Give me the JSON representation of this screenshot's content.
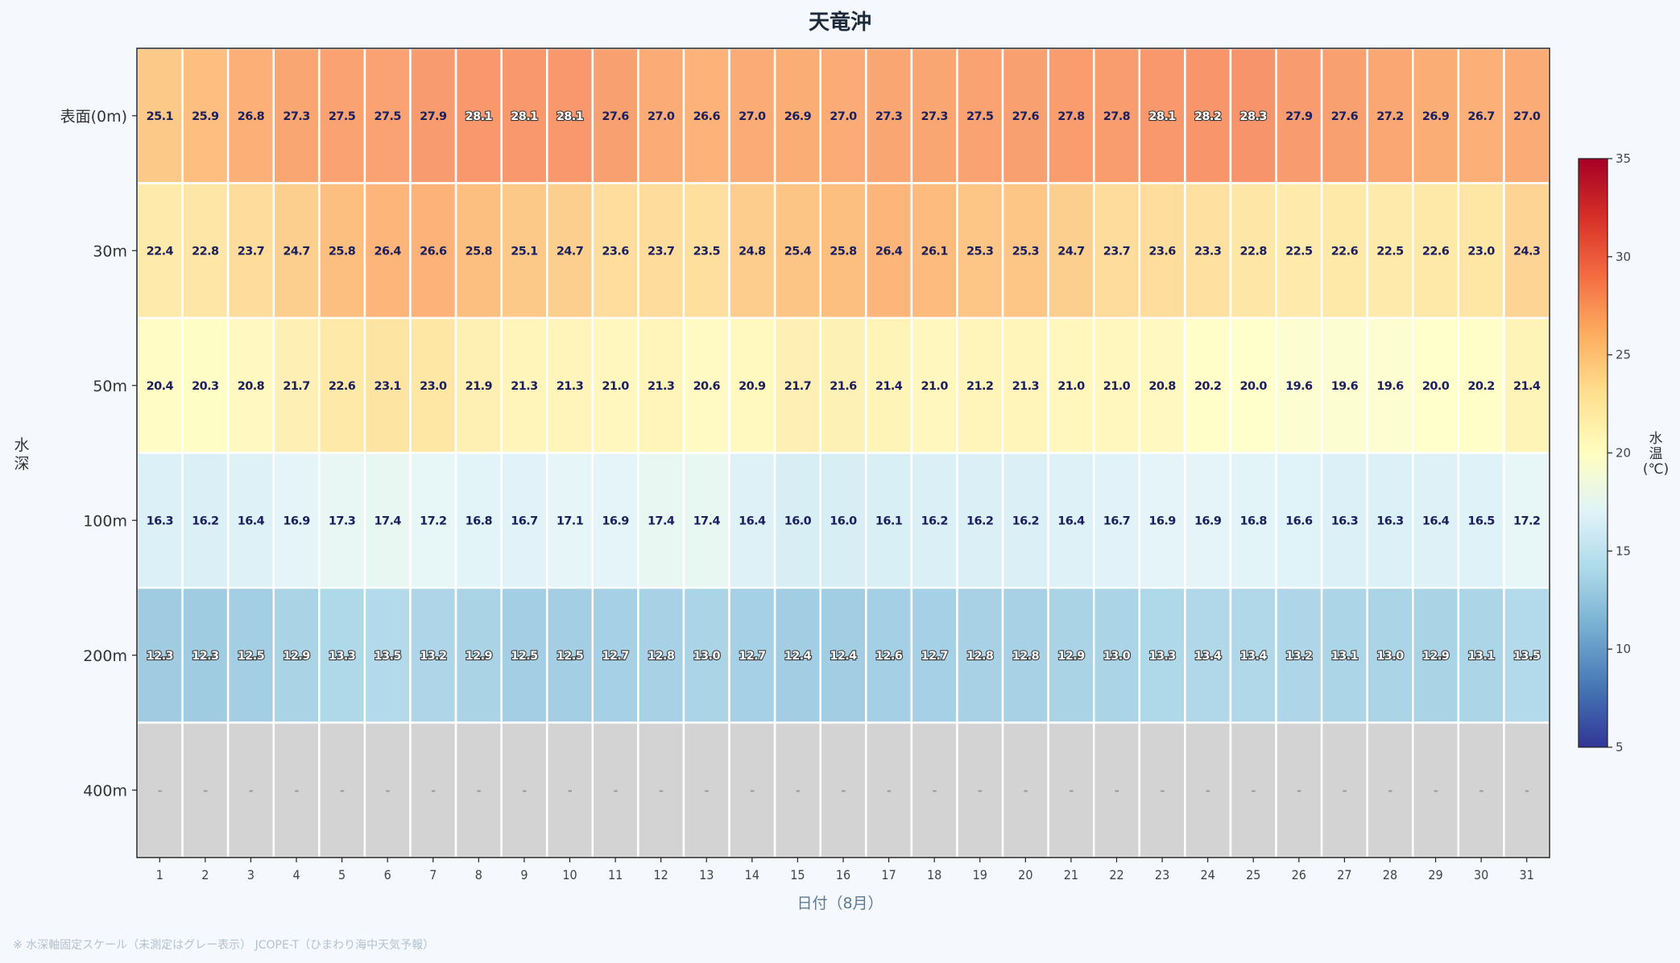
{
  "chart_data": {
    "type": "heatmap",
    "title": "天竜沖",
    "xlabel": "日付（8月）",
    "ylabel": "水深",
    "colorbar_label": "水温(℃)",
    "colorbar_range": [
      5,
      35
    ],
    "colorbar_ticks": [
      5,
      10,
      15,
      20,
      25,
      30,
      35
    ],
    "colormap": "RdYlBu_r",
    "missing_color": "#d3d3d3",
    "missing_label": "-",
    "x": [
      1,
      2,
      3,
      4,
      5,
      6,
      7,
      8,
      9,
      10,
      11,
      12,
      13,
      14,
      15,
      16,
      17,
      18,
      19,
      20,
      21,
      22,
      23,
      24,
      25,
      26,
      27,
      28,
      29,
      30,
      31
    ],
    "y": [
      "表面(0m)",
      "30m",
      "50m",
      "100m",
      "200m",
      "400m"
    ],
    "values": [
      [
        25.1,
        25.9,
        26.8,
        27.3,
        27.5,
        27.5,
        27.9,
        28.1,
        28.1,
        28.1,
        27.6,
        27.0,
        26.6,
        27.0,
        26.9,
        27.0,
        27.3,
        27.3,
        27.5,
        27.6,
        27.8,
        27.8,
        28.1,
        28.2,
        28.3,
        27.9,
        27.6,
        27.2,
        26.9,
        26.7,
        27.0
      ],
      [
        22.4,
        22.8,
        23.7,
        24.7,
        25.8,
        26.4,
        26.6,
        25.8,
        25.1,
        24.7,
        23.6,
        23.7,
        23.5,
        24.8,
        25.4,
        25.8,
        26.4,
        26.1,
        25.3,
        25.3,
        24.7,
        23.7,
        23.6,
        23.3,
        22.8,
        22.5,
        22.6,
        22.5,
        22.6,
        23.0,
        24.3
      ],
      [
        20.4,
        20.3,
        20.8,
        21.7,
        22.6,
        23.1,
        23.0,
        21.9,
        21.3,
        21.3,
        21.0,
        21.3,
        20.6,
        20.9,
        21.7,
        21.6,
        21.4,
        21.0,
        21.2,
        21.3,
        21.0,
        21.0,
        20.8,
        20.2,
        20.0,
        19.6,
        19.6,
        19.6,
        20.0,
        20.2,
        21.4
      ],
      [
        16.3,
        16.2,
        16.4,
        16.9,
        17.3,
        17.4,
        17.2,
        16.8,
        16.7,
        17.1,
        16.9,
        17.4,
        17.4,
        16.4,
        16.0,
        16.0,
        16.1,
        16.2,
        16.2,
        16.2,
        16.4,
        16.7,
        16.9,
        16.9,
        16.8,
        16.6,
        16.3,
        16.3,
        16.4,
        16.5,
        17.2
      ],
      [
        12.3,
        12.3,
        12.5,
        12.9,
        13.3,
        13.5,
        13.2,
        12.9,
        12.5,
        12.5,
        12.7,
        12.8,
        13.0,
        12.7,
        12.4,
        12.4,
        12.6,
        12.7,
        12.8,
        12.8,
        12.9,
        13.0,
        13.3,
        13.4,
        13.4,
        13.2,
        13.1,
        13.0,
        12.9,
        13.1,
        13.5
      ],
      [
        null,
        null,
        null,
        null,
        null,
        null,
        null,
        null,
        null,
        null,
        null,
        null,
        null,
        null,
        null,
        null,
        null,
        null,
        null,
        null,
        null,
        null,
        null,
        null,
        null,
        null,
        null,
        null,
        null,
        null,
        null
      ]
    ]
  },
  "footnote": "※ 水深軸固定スケール（未測定はグレー表示） JCOPE-T（ひまわり海中天気予報）"
}
